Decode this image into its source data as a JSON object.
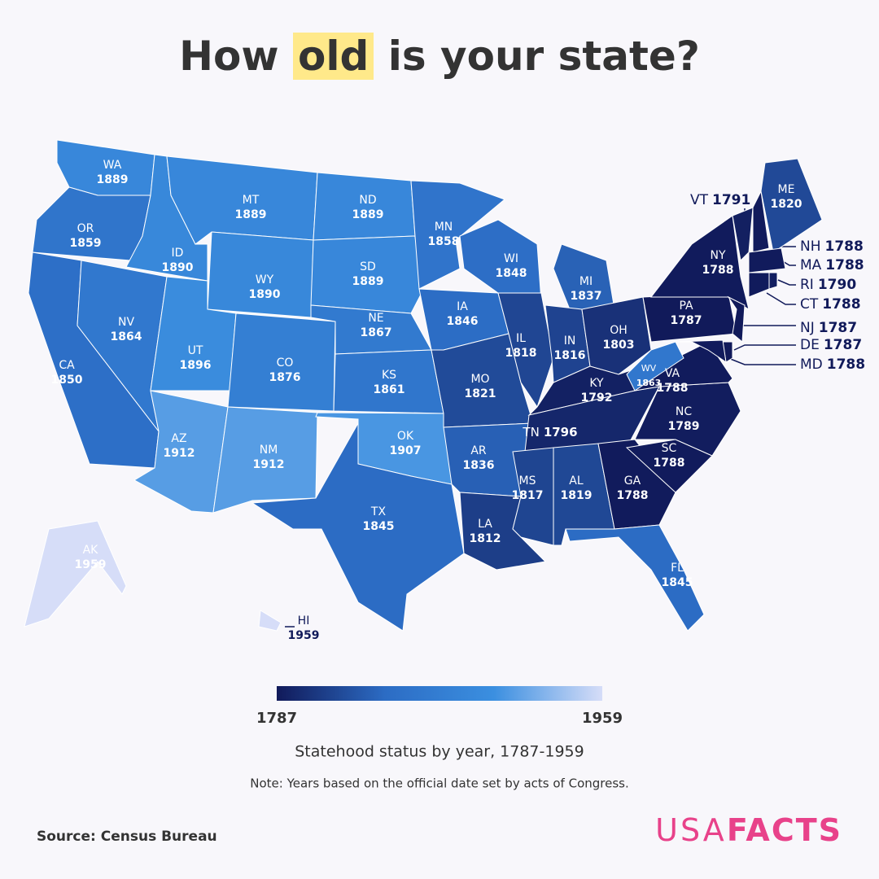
{
  "title": {
    "before": "How",
    "highlight": "old",
    "after": "is your state?"
  },
  "colorscale": [
    "#111a5a",
    "#2c6cc4",
    "#3b8fe0",
    "#d6ddf8"
  ],
  "legend": {
    "min": 1787,
    "max": 1959
  },
  "subtitle": "Statehood status by year, 1787-1959",
  "note": "Note: Years based on the official date set by acts of Congress.",
  "source": "Source: Census Bureau",
  "logo": {
    "light": "USA",
    "bold": "FACTS"
  },
  "states": [
    {
      "abbr": "WA",
      "year": 1889
    },
    {
      "abbr": "OR",
      "year": 1859
    },
    {
      "abbr": "CA",
      "year": 1850
    },
    {
      "abbr": "NV",
      "year": 1864
    },
    {
      "abbr": "ID",
      "year": 1890
    },
    {
      "abbr": "MT",
      "year": 1889
    },
    {
      "abbr": "WY",
      "year": 1890
    },
    {
      "abbr": "UT",
      "year": 1896
    },
    {
      "abbr": "CO",
      "year": 1876
    },
    {
      "abbr": "AZ",
      "year": 1912
    },
    {
      "abbr": "NM",
      "year": 1912
    },
    {
      "abbr": "ND",
      "year": 1889
    },
    {
      "abbr": "SD",
      "year": 1889
    },
    {
      "abbr": "NE",
      "year": 1867
    },
    {
      "abbr": "KS",
      "year": 1861
    },
    {
      "abbr": "OK",
      "year": 1907
    },
    {
      "abbr": "TX",
      "year": 1845
    },
    {
      "abbr": "MN",
      "year": 1858
    },
    {
      "abbr": "IA",
      "year": 1846
    },
    {
      "abbr": "MO",
      "year": 1821
    },
    {
      "abbr": "AR",
      "year": 1836
    },
    {
      "abbr": "LA",
      "year": 1812
    },
    {
      "abbr": "WI",
      "year": 1848
    },
    {
      "abbr": "IL",
      "year": 1818
    },
    {
      "abbr": "MI",
      "year": 1837
    },
    {
      "abbr": "IN",
      "year": 1816
    },
    {
      "abbr": "OH",
      "year": 1803
    },
    {
      "abbr": "KY",
      "year": 1792
    },
    {
      "abbr": "TN",
      "year": 1796
    },
    {
      "abbr": "MS",
      "year": 1817
    },
    {
      "abbr": "AL",
      "year": 1819
    },
    {
      "abbr": "GA",
      "year": 1788
    },
    {
      "abbr": "FL",
      "year": 1845
    },
    {
      "abbr": "SC",
      "year": 1788
    },
    {
      "abbr": "NC",
      "year": 1789
    },
    {
      "abbr": "VA",
      "year": 1788
    },
    {
      "abbr": "WV",
      "year": 1863
    },
    {
      "abbr": "PA",
      "year": 1787
    },
    {
      "abbr": "NY",
      "year": 1788
    },
    {
      "abbr": "VT",
      "year": 1791
    },
    {
      "abbr": "NH",
      "year": 1788
    },
    {
      "abbr": "ME",
      "year": 1820
    },
    {
      "abbr": "MA",
      "year": 1788
    },
    {
      "abbr": "CT",
      "year": 1788
    },
    {
      "abbr": "RI",
      "year": 1790
    },
    {
      "abbr": "NJ",
      "year": 1787
    },
    {
      "abbr": "DE",
      "year": 1787
    },
    {
      "abbr": "MD",
      "year": 1788
    },
    {
      "abbr": "AK",
      "year": 1959
    },
    {
      "abbr": "HI",
      "year": 1959
    }
  ]
}
